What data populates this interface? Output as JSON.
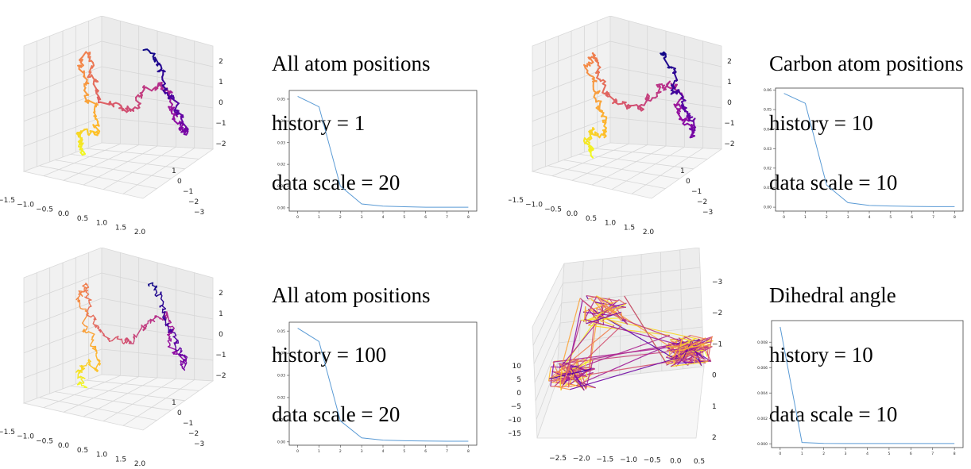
{
  "panels": [
    {
      "id": "p1",
      "title_lines": [
        "All atom positions",
        "history = 1",
        "data scale = 20"
      ],
      "plot3d": {
        "style": "A",
        "x_ticks": [
          "−1.5",
          "−1.0",
          "−0.5",
          "0.0",
          "0.5",
          "1.0",
          "1.5",
          "2.0"
        ],
        "y_ticks": [
          "1",
          "0",
          "−1",
          "−2",
          "−3"
        ],
        "z_ticks": [
          "2",
          "1",
          "0",
          "−1",
          "−2"
        ],
        "colormap": "plasma",
        "line_width": 2
      },
      "chart_data": {
        "type": "line",
        "x": [
          0,
          1,
          2,
          3,
          4,
          5,
          6,
          7,
          8
        ],
        "values": [
          0.0513,
          0.0465,
          0.01,
          0.0018,
          0.0008,
          0.0005,
          0.0003,
          0.0003,
          0.0003
        ],
        "ylim": [
          -0.0015,
          0.054
        ],
        "y_ticks": [
          0.0,
          0.01,
          0.02,
          0.03,
          0.04,
          0.05
        ],
        "y_tick_labels": [
          "0.00",
          "0.01",
          "0.02",
          "0.03",
          "0.04",
          "0.05"
        ],
        "x_tick_labels": [
          "0",
          "1",
          "2",
          "3",
          "4",
          "5",
          "6",
          "7",
          "8"
        ],
        "line_color": "#5b9bd5"
      }
    },
    {
      "id": "p2",
      "title_lines": [
        "Carbon atom positions",
        "history = 10",
        "data scale = 10"
      ],
      "plot3d": {
        "style": "A",
        "x_ticks": [
          "−1.5",
          "−1.0",
          "−0.5",
          "0.0",
          "0.5",
          "1.0",
          "1.5",
          "2.0"
        ],
        "y_ticks": [
          "1",
          "0",
          "−1",
          "−2",
          "−3"
        ],
        "z_ticks": [
          "2",
          "1",
          "0",
          "−1",
          "−2"
        ],
        "colormap": "plasma",
        "line_width": 2
      },
      "chart_data": {
        "type": "line",
        "x": [
          0,
          1,
          2,
          3,
          4,
          5,
          6,
          7,
          8
        ],
        "values": [
          0.0583,
          0.0532,
          0.0113,
          0.0023,
          0.0009,
          0.0006,
          0.0004,
          0.0003,
          0.0003
        ],
        "ylim": [
          -0.002,
          0.061
        ],
        "y_ticks": [
          0.0,
          0.01,
          0.02,
          0.03,
          0.04,
          0.05,
          0.06
        ],
        "y_tick_labels": [
          "0.00",
          "0.01",
          "0.02",
          "0.03",
          "0.04",
          "0.05",
          "0.06"
        ],
        "x_tick_labels": [
          "0",
          "1",
          "2",
          "3",
          "4",
          "5",
          "6",
          "7",
          "8"
        ],
        "line_color": "#5b9bd5"
      }
    },
    {
      "id": "p3",
      "title_lines": [
        "All atom positions",
        "history = 100",
        "data scale = 20"
      ],
      "plot3d": {
        "style": "A",
        "x_ticks": [
          "−1.5",
          "−1.0",
          "−0.5",
          "0.0",
          "0.5",
          "1.0",
          "1.5",
          "2.0"
        ],
        "y_ticks": [
          "1",
          "0",
          "−1",
          "−2",
          "−3"
        ],
        "z_ticks": [
          "2",
          "1",
          "0",
          "−1",
          "−2"
        ],
        "colormap": "plasma",
        "line_width": 1.4
      },
      "chart_data": {
        "type": "line",
        "x": [
          0,
          1,
          2,
          3,
          4,
          5,
          6,
          7,
          8
        ],
        "values": [
          0.0513,
          0.0453,
          0.0095,
          0.0018,
          0.0008,
          0.0005,
          0.0004,
          0.0003,
          0.0003
        ],
        "ylim": [
          -0.0015,
          0.054
        ],
        "y_ticks": [
          0.0,
          0.01,
          0.02,
          0.03,
          0.04,
          0.05
        ],
        "y_tick_labels": [
          "0.00",
          "0.01",
          "0.02",
          "0.03",
          "0.04",
          "0.05"
        ],
        "x_tick_labels": [
          "0",
          "1",
          "2",
          "3",
          "4",
          "5",
          "6",
          "7",
          "8"
        ],
        "line_color": "#5b9bd5"
      }
    },
    {
      "id": "p4",
      "title_lines": [
        "Dihedral angle",
        "history = 10",
        "data scale = 10"
      ],
      "plot3d": {
        "style": "B",
        "x_ticks": [
          "−2.5",
          "−2.0",
          "−1.5",
          "−1.0",
          "−0.5",
          "0.0",
          "0.5"
        ],
        "y_ticks": [
          "−3",
          "−2",
          "−1",
          "0",
          "1",
          "2"
        ],
        "z_ticks": [
          "10",
          "5",
          "0",
          "−5",
          "−10",
          "−15"
        ],
        "colormap": "plasma",
        "line_width": 1.2
      },
      "chart_data": {
        "type": "line",
        "x": [
          0,
          1,
          2,
          3,
          4,
          5,
          6,
          7,
          8
        ],
        "values": [
          0.0092,
          0.0001,
          3e-05,
          2e-05,
          2e-05,
          2e-05,
          2e-05,
          2e-05,
          2e-05
        ],
        "ylim": [
          -0.0003,
          0.0097
        ],
        "y_ticks": [
          0.0,
          0.002,
          0.004,
          0.006,
          0.008
        ],
        "y_tick_labels": [
          "0.000",
          "0.002",
          "0.004",
          "0.006",
          "0.008"
        ],
        "x_tick_labels": [
          "0",
          "1",
          "2",
          "3",
          "4",
          "5",
          "6",
          "7",
          "8"
        ],
        "line_color": "#5b9bd5"
      }
    }
  ]
}
